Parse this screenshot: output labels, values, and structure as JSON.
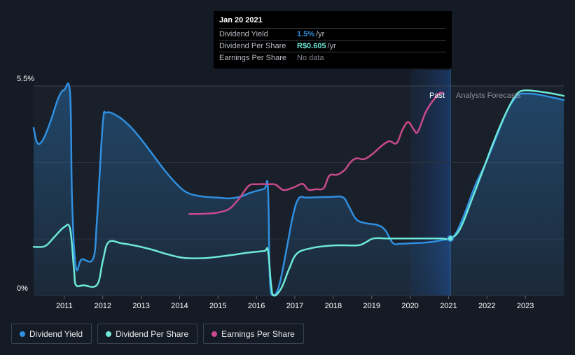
{
  "tooltip": {
    "date": "Jan 20 2021",
    "rows": [
      {
        "name": "Dividend Yield",
        "value": "1.5%",
        "unit": "/yr",
        "color": "#2f8fe0"
      },
      {
        "name": "Dividend Per Share",
        "value": "R$0.605",
        "unit": "/yr",
        "color": "#6ee8d8"
      },
      {
        "name": "Earnings Per Share",
        "value": "No data",
        "unit": "",
        "color": "#7f858e"
      }
    ]
  },
  "labels": {
    "past": "Past",
    "forecast": "Analysts Forecasts"
  },
  "legend": [
    {
      "label": "Dividend Yield",
      "color": "#2f8fe0"
    },
    {
      "label": "Dividend Per Share",
      "color": "#6ee8d8"
    },
    {
      "label": "Earnings Per Share",
      "color": "#c84a8c"
    }
  ],
  "chart_data": {
    "type": "line",
    "y_tick_labels": [
      "5.5%",
      "0%"
    ],
    "x_tick_labels": [
      "2011",
      "2012",
      "2013",
      "2014",
      "2015",
      "2016",
      "2017",
      "2018",
      "2019",
      "2020",
      "2021",
      "2022",
      "2023"
    ],
    "x_range": [
      2010.2,
      2024.0
    ],
    "y_range_percent": [
      0,
      5.5
    ],
    "highlight_date": 2021.05,
    "past_region": [
      2020.0,
      2021.05
    ],
    "series": [
      {
        "name": "Dividend Yield",
        "color": "#2f8fe0",
        "unit": "%",
        "points": [
          [
            2010.2,
            4.4
          ],
          [
            2010.3,
            4.0
          ],
          [
            2010.45,
            4.1
          ],
          [
            2010.65,
            4.6
          ],
          [
            2010.85,
            5.2
          ],
          [
            2011.0,
            5.4
          ],
          [
            2011.15,
            5.3
          ],
          [
            2011.2,
            2.5
          ],
          [
            2011.3,
            0.75
          ],
          [
            2011.45,
            0.95
          ],
          [
            2011.75,
            0.97
          ],
          [
            2011.85,
            2.0
          ],
          [
            2012.0,
            4.5
          ],
          [
            2012.1,
            4.8
          ],
          [
            2012.4,
            4.7
          ],
          [
            2012.7,
            4.45
          ],
          [
            2013.0,
            4.1
          ],
          [
            2013.3,
            3.7
          ],
          [
            2013.6,
            3.3
          ],
          [
            2013.9,
            2.95
          ],
          [
            2014.2,
            2.7
          ],
          [
            2014.6,
            2.6
          ],
          [
            2015.0,
            2.57
          ],
          [
            2015.3,
            2.55
          ],
          [
            2015.6,
            2.6
          ],
          [
            2015.85,
            2.7
          ],
          [
            2016.2,
            2.8
          ],
          [
            2016.3,
            2.82
          ],
          [
            2016.35,
            0.4
          ],
          [
            2016.45,
            0.02
          ],
          [
            2016.6,
            0.3
          ],
          [
            2016.8,
            1.3
          ],
          [
            2016.95,
            2.1
          ],
          [
            2017.1,
            2.55
          ],
          [
            2017.3,
            2.57
          ],
          [
            2017.6,
            2.58
          ],
          [
            2017.95,
            2.59
          ],
          [
            2018.25,
            2.58
          ],
          [
            2018.4,
            2.35
          ],
          [
            2018.6,
            2.0
          ],
          [
            2018.85,
            1.9
          ],
          [
            2019.15,
            1.85
          ],
          [
            2019.35,
            1.72
          ],
          [
            2019.55,
            1.38
          ],
          [
            2019.75,
            1.36
          ],
          [
            2020.0,
            1.37
          ],
          [
            2020.5,
            1.4
          ],
          [
            2020.8,
            1.45
          ],
          [
            2021.05,
            1.5
          ],
          [
            2021.2,
            1.65
          ],
          [
            2021.4,
            2.1
          ],
          [
            2021.7,
            2.9
          ],
          [
            2022.0,
            3.55
          ],
          [
            2022.3,
            4.3
          ],
          [
            2022.55,
            4.9
          ],
          [
            2022.8,
            5.25
          ],
          [
            2023.0,
            5.3
          ],
          [
            2023.3,
            5.28
          ],
          [
            2023.7,
            5.2
          ],
          [
            2024.0,
            5.13
          ]
        ]
      },
      {
        "name": "Dividend Per Share",
        "color": "#6ee8d8",
        "unit": "%-scale",
        "points": [
          [
            2010.2,
            1.28
          ],
          [
            2010.5,
            1.3
          ],
          [
            2010.75,
            1.55
          ],
          [
            2011.0,
            1.8
          ],
          [
            2011.15,
            1.75
          ],
          [
            2011.25,
            0.7
          ],
          [
            2011.3,
            0.28
          ],
          [
            2011.5,
            0.27
          ],
          [
            2011.85,
            0.28
          ],
          [
            2012.0,
            0.9
          ],
          [
            2012.15,
            1.4
          ],
          [
            2012.5,
            1.37
          ],
          [
            2012.9,
            1.3
          ],
          [
            2013.3,
            1.2
          ],
          [
            2013.7,
            1.08
          ],
          [
            2014.1,
            0.99
          ],
          [
            2014.6,
            0.98
          ],
          [
            2015.0,
            1.02
          ],
          [
            2015.4,
            1.07
          ],
          [
            2015.8,
            1.13
          ],
          [
            2016.2,
            1.17
          ],
          [
            2016.3,
            1.18
          ],
          [
            2016.38,
            0.3
          ],
          [
            2016.45,
            0.0
          ],
          [
            2016.65,
            0.2
          ],
          [
            2016.85,
            0.7
          ],
          [
            2017.05,
            1.1
          ],
          [
            2017.4,
            1.24
          ],
          [
            2017.8,
            1.3
          ],
          [
            2018.2,
            1.32
          ],
          [
            2018.65,
            1.32
          ],
          [
            2018.85,
            1.4
          ],
          [
            2019.05,
            1.5
          ],
          [
            2019.4,
            1.5
          ],
          [
            2019.8,
            1.5
          ],
          [
            2020.3,
            1.5
          ],
          [
            2020.8,
            1.5
          ],
          [
            2021.05,
            1.5
          ],
          [
            2021.3,
            1.75
          ],
          [
            2021.6,
            2.5
          ],
          [
            2021.9,
            3.3
          ],
          [
            2022.2,
            4.1
          ],
          [
            2022.5,
            4.8
          ],
          [
            2022.75,
            5.25
          ],
          [
            2022.95,
            5.38
          ],
          [
            2023.3,
            5.36
          ],
          [
            2023.7,
            5.3
          ],
          [
            2024.0,
            5.24
          ]
        ]
      },
      {
        "name": "Earnings Per Share",
        "color": "#c84a8c",
        "unit": "%-scale",
        "points": [
          [
            2014.25,
            2.14
          ],
          [
            2014.7,
            2.15
          ],
          [
            2015.0,
            2.18
          ],
          [
            2015.3,
            2.28
          ],
          [
            2015.55,
            2.55
          ],
          [
            2015.8,
            2.88
          ],
          [
            2016.0,
            2.92
          ],
          [
            2016.3,
            2.92
          ],
          [
            2016.5,
            2.91
          ],
          [
            2016.7,
            2.77
          ],
          [
            2016.95,
            2.83
          ],
          [
            2017.2,
            2.93
          ],
          [
            2017.35,
            2.78
          ],
          [
            2017.55,
            2.79
          ],
          [
            2017.75,
            2.82
          ],
          [
            2017.9,
            3.15
          ],
          [
            2018.1,
            3.17
          ],
          [
            2018.3,
            3.3
          ],
          [
            2018.45,
            3.5
          ],
          [
            2018.6,
            3.6
          ],
          [
            2018.8,
            3.58
          ],
          [
            2019.0,
            3.7
          ],
          [
            2019.25,
            3.92
          ],
          [
            2019.45,
            4.05
          ],
          [
            2019.65,
            4.0
          ],
          [
            2019.8,
            4.35
          ],
          [
            2019.95,
            4.55
          ],
          [
            2020.1,
            4.35
          ],
          [
            2020.2,
            4.3
          ],
          [
            2020.4,
            4.8
          ],
          [
            2020.55,
            5.05
          ],
          [
            2020.75,
            5.3
          ],
          [
            2020.85,
            5.32
          ]
        ]
      }
    ]
  }
}
